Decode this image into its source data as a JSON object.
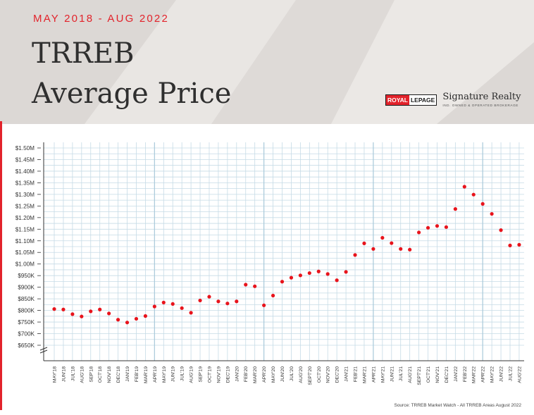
{
  "header": {
    "date_range": "MAY 2018 - AUG 2022",
    "title_line1": "TRREB",
    "title_line2": "Average Price"
  },
  "logo": {
    "royal": "ROYAL",
    "lepage": "LEPAGE",
    "brand": "Signature Realty",
    "tagline": "IND. OWNED & OPERATED BROKERAGE"
  },
  "source": "Source: TRREB Market Watch - All TRREB Areas August 2022",
  "colors": {
    "accent": "#e2232b",
    "point": "#e8141c",
    "grid": "#c6dbe6",
    "grid_strong": "#a9c9da",
    "header_bg": "#e2dfdc"
  },
  "chart_data": {
    "type": "scatter",
    "title": "TRREB Average Price",
    "ytick_labels": [
      "$650K",
      "$700K",
      "$750K",
      "$800K",
      "$850K",
      "$900K",
      "$950K",
      "$1.00M",
      "$1.05M",
      "$1.10M",
      "$1.15M",
      "$1.20M",
      "$1.25M",
      "$1.30M",
      "$1.35M",
      "$1.40M",
      "$1.45M",
      "$1.50M"
    ],
    "ylim": [
      650000,
      1500000
    ],
    "axis_break": true,
    "grid": true,
    "categories": [
      "MAY'18",
      "JUN'18",
      "JUL'18",
      "AUG'18",
      "SEP'18",
      "OCT'18",
      "NOV'18",
      "DEC'18",
      "JAN'19",
      "FEB'19",
      "MAR'19",
      "APR'19",
      "MAY'19",
      "JUN'19",
      "JUL'19",
      "AUG'19",
      "SEP'19",
      "OCT'19",
      "NOV'19",
      "DEC'19",
      "JAN'20",
      "FEB'20",
      "MAR'20",
      "APR'20",
      "MAY'20",
      "JUN'20",
      "JUL'20",
      "AUG'20",
      "SEPT'20",
      "OCT'20",
      "NOV'20",
      "DEC'20",
      "JAN'21",
      "FEB'21",
      "MAR'21",
      "APR'21",
      "MAY'21",
      "JUN'21",
      "JUL'21",
      "AUG'21",
      "SEPT'21",
      "OCT'21",
      "NOV'21",
      "DEC'21",
      "JAN'22",
      "FEB'22",
      "MAR'22",
      "APR'22",
      "MAY'22",
      "JUN'22",
      "JUL'22",
      "AUG'22"
    ],
    "values": [
      806000,
      804000,
      784000,
      774000,
      796000,
      804000,
      787000,
      760000,
      748000,
      764000,
      776000,
      817000,
      834000,
      828000,
      810000,
      790000,
      843000,
      859000,
      839000,
      830000,
      839000,
      911000,
      904000,
      822000,
      864000,
      924000,
      941000,
      951000,
      961000,
      968000,
      957000,
      930000,
      966000,
      1039000,
      1089000,
      1065000,
      1113000,
      1090000,
      1065000,
      1062000,
      1136000,
      1156000,
      1164000,
      1159000,
      1237000,
      1333000,
      1299000,
      1259000,
      1216000,
      1146000,
      1080000,
      1083000
    ]
  }
}
